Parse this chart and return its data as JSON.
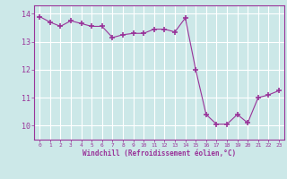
{
  "x": [
    0,
    1,
    2,
    3,
    4,
    5,
    6,
    7,
    8,
    9,
    10,
    11,
    12,
    13,
    14,
    15,
    16,
    17,
    18,
    19,
    20,
    21,
    22,
    23
  ],
  "y": [
    13.9,
    13.7,
    13.55,
    13.75,
    13.65,
    13.55,
    13.55,
    13.15,
    13.25,
    13.3,
    13.3,
    13.45,
    13.45,
    13.35,
    13.85,
    12.0,
    10.4,
    10.05,
    10.05,
    10.4,
    10.1,
    11.0,
    11.1,
    11.25
  ],
  "line_color": "#993399",
  "marker": "+",
  "marker_size": 4,
  "bg_color": "#cce8e8",
  "grid_color": "#ffffff",
  "xlabel": "Windchill (Refroidissement éolien,°C)",
  "xlabel_color": "#993399",
  "tick_color": "#993399",
  "ylim": [
    9.5,
    14.3
  ],
  "xlim": [
    -0.5,
    23.5
  ],
  "yticks": [
    10,
    11,
    12,
    13,
    14
  ],
  "xticks": [
    0,
    1,
    2,
    3,
    4,
    5,
    6,
    7,
    8,
    9,
    10,
    11,
    12,
    13,
    14,
    15,
    16,
    17,
    18,
    19,
    20,
    21,
    22,
    23
  ]
}
